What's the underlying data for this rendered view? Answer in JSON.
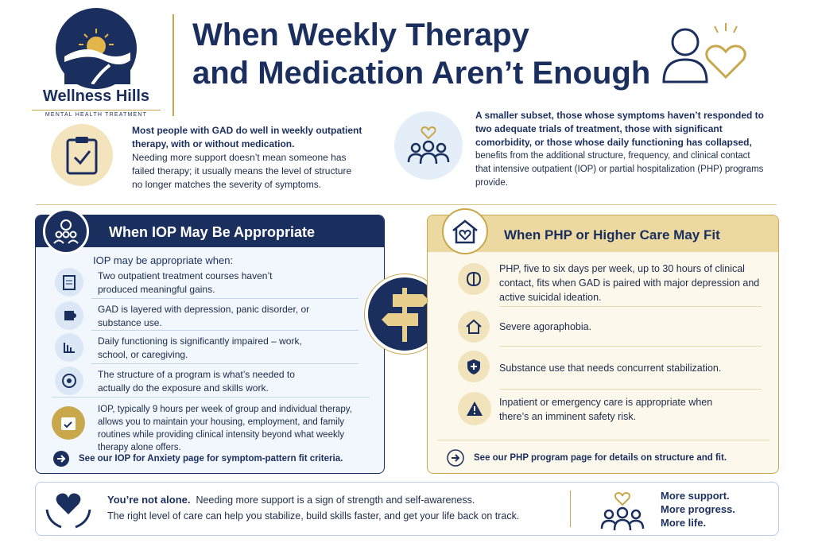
{
  "logo": {
    "name": "Wellness Hills",
    "tagline": "MENTAL HEALTH TREATMENT"
  },
  "header": {
    "title_line1": "When Weekly Therapy",
    "title_line2": "and Medication Aren’t Enough"
  },
  "intro": {
    "left_bold": "Most people with GAD do well in weekly outpatient therapy, with or without medication.",
    "left_text": "Needing more support doesn’t mean someone has failed therapy; it usually means the level of structure no longer matches the severity of symptoms.",
    "right_bold": "A smaller subset, those whose symptoms haven’t responded to two adequate trials of treatment, those with significant comorbidity, or those whose daily functioning has collapsed,",
    "right_text": "benefits from the additional structure, frequency, and clinical contact that intensive outpatient (IOP) or partial hospitalization (PHP) programs provide."
  },
  "iop": {
    "title": "When IOP May Be Appropriate",
    "lead": "IOP may be appropriate when:",
    "items": [
      "Two outpatient treatment courses haven’t produced meaningful gains.",
      "GAD is layered with depression, panic disorder, or substance use.",
      "Daily functioning is significantly impaired – work, school, or caregiving.",
      "The structure of a program is what’s needed to actually do the exposure and skills work."
    ],
    "summary": "IOP, typically 9 hours per week of group and individual therapy, allows you to maintain your housing, employment, and family routines while providing clinical intensity beyond what weekly therapy alone offers.",
    "link": "See our IOP for Anxiety page for symptom-pattern fit criteria."
  },
  "php": {
    "title": "When PHP or Higher Care May Fit",
    "items": [
      "PHP, five to six days per week, up to 30 hours of clinical contact, fits when GAD is paired with major depression and active suicidal ideation.",
      "Severe agoraphobia.",
      "Substance use that needs concurrent stabilization.",
      "Inpatient or emergency care is appropriate when there’s an imminent safety risk."
    ],
    "link": "See our PHP program page for details on structure and fit."
  },
  "footer": {
    "bold": "You’re not alone.",
    "line1": "Needing more support is a sign of strength and self-awareness.",
    "line2": "The right level of care can help you stabilize, build skills faster, and get your life back on track.",
    "taglines": [
      "More support.",
      "More progress.",
      "More life."
    ]
  }
}
